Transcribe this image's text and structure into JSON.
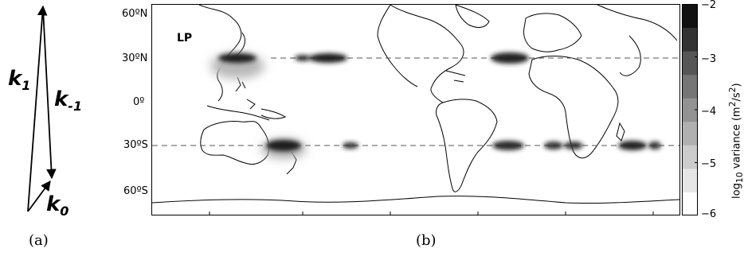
{
  "panel_a": {
    "label": "(a)",
    "vectors": [
      {
        "name": "k",
        "subscript": "1"
      },
      {
        "name": "k",
        "subscript": "-1"
      },
      {
        "name": "k",
        "subscript": "0"
      }
    ]
  },
  "panel_b": {
    "label": "(b)",
    "map_label": "LP",
    "lat_ticks": [
      "60ºN",
      "30ºN",
      "0º",
      "30ºS",
      "60ºS"
    ],
    "dashed_latitudes": [
      "30ºN",
      "30ºS"
    ],
    "colorbar": {
      "tick_labels": [
        "−2",
        "−3",
        "−4",
        "−5",
        "−6"
      ],
      "ylabel_prefix": "log",
      "ylabel_sub": "10",
      "ylabel_rest": " variance (m",
      "ylabel_sup": "2",
      "ylabel_mid": "/s",
      "ylabel_sup2": "2",
      "ylabel_end": ")",
      "levels": [
        -6,
        -5.5,
        -5,
        -4.5,
        -4,
        -3.5,
        -3,
        -2.5,
        -2
      ],
      "colors": [
        "#ffffff",
        "#e6e6e6",
        "#cccccc",
        "#b0b0b0",
        "#939393",
        "#767676",
        "#565656",
        "#333333",
        "#111111"
      ]
    }
  }
}
